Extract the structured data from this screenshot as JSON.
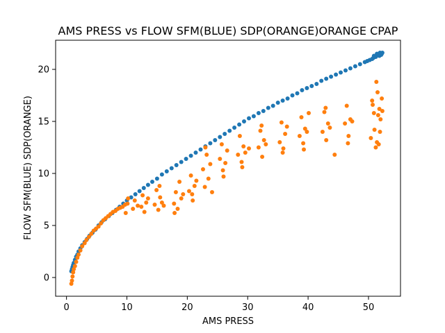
{
  "chart_data": {
    "type": "scatter",
    "title": "AMS PRESS vs FLOW SFM(BLUE) SDP(ORANGE)ORANGE CPAP",
    "xlabel": "AMS PRESS",
    "ylabel": "FLOW SFM(BLUE) SDP(ORANGE)",
    "xlim": [
      -1.8,
      55.3
    ],
    "ylim": [
      -1.8,
      22.8
    ],
    "x_ticks": [
      0,
      10,
      20,
      30,
      40,
      50
    ],
    "y_ticks": [
      0,
      5,
      10,
      15,
      20
    ],
    "grid": false,
    "legend": "none",
    "series": [
      {
        "color": "#1f77b4",
        "points": [
          [
            0.8,
            0.6
          ],
          [
            0.9,
            0.8
          ],
          [
            1.0,
            1.0
          ],
          [
            1.1,
            1.2
          ],
          [
            1.2,
            1.4
          ],
          [
            1.4,
            1.7
          ],
          [
            1.6,
            2.0
          ],
          [
            1.8,
            2.2
          ],
          [
            2.0,
            2.5
          ],
          [
            2.3,
            2.8
          ],
          [
            2.6,
            3.1
          ],
          [
            3.0,
            3.4
          ],
          [
            3.4,
            3.7
          ],
          [
            3.8,
            4.0
          ],
          [
            4.3,
            4.3
          ],
          [
            4.8,
            4.6
          ],
          [
            5.3,
            5.0
          ],
          [
            5.8,
            5.3
          ],
          [
            6.4,
            5.6
          ],
          [
            7.0,
            5.9
          ],
          [
            7.6,
            6.2
          ],
          [
            8.2,
            6.5
          ],
          [
            8.8,
            6.8
          ],
          [
            9.4,
            7.1
          ],
          [
            10.0,
            7.4
          ],
          [
            10.7,
            7.7
          ],
          [
            11.4,
            8.0
          ],
          [
            12.1,
            8.3
          ],
          [
            12.8,
            8.6
          ],
          [
            13.5,
            8.9
          ],
          [
            14.2,
            9.2
          ],
          [
            15.0,
            9.5
          ],
          [
            15.8,
            9.9
          ],
          [
            16.6,
            10.2
          ],
          [
            17.4,
            10.5
          ],
          [
            18.2,
            10.8
          ],
          [
            19.0,
            11.1
          ],
          [
            19.8,
            11.4
          ],
          [
            20.6,
            11.7
          ],
          [
            21.4,
            12.0
          ],
          [
            22.2,
            12.3
          ],
          [
            23.0,
            12.6
          ],
          [
            23.8,
            12.9
          ],
          [
            24.6,
            13.2
          ],
          [
            25.4,
            13.5
          ],
          [
            26.2,
            13.8
          ],
          [
            27.0,
            14.1
          ],
          [
            27.8,
            14.4
          ],
          [
            28.6,
            14.7
          ],
          [
            29.4,
            15.0
          ],
          [
            30.2,
            15.3
          ],
          [
            31.0,
            15.5
          ],
          [
            31.8,
            15.8
          ],
          [
            32.6,
            16.0
          ],
          [
            33.4,
            16.3
          ],
          [
            34.2,
            16.5
          ],
          [
            35.0,
            16.8
          ],
          [
            35.8,
            17.0
          ],
          [
            36.6,
            17.2
          ],
          [
            37.4,
            17.5
          ],
          [
            38.2,
            17.7
          ],
          [
            39.0,
            18.0
          ],
          [
            39.8,
            18.2
          ],
          [
            40.6,
            18.4
          ],
          [
            41.4,
            18.6
          ],
          [
            42.2,
            18.9
          ],
          [
            43.0,
            19.1
          ],
          [
            43.8,
            19.3
          ],
          [
            44.6,
            19.5
          ],
          [
            45.4,
            19.7
          ],
          [
            46.2,
            19.9
          ],
          [
            47.0,
            20.1
          ],
          [
            47.8,
            20.3
          ],
          [
            48.6,
            20.5
          ],
          [
            49.4,
            20.7
          ],
          [
            50.2,
            20.9
          ],
          [
            50.8,
            21.1
          ],
          [
            51.2,
            21.2
          ],
          [
            51.6,
            21.4
          ],
          [
            52.0,
            21.5
          ],
          [
            52.3,
            21.6
          ],
          [
            51.8,
            21.3
          ],
          [
            51.4,
            21.5
          ],
          [
            52.1,
            21.4
          ],
          [
            50.6,
            21.0
          ],
          [
            49.8,
            20.8
          ],
          [
            51.0,
            21.2
          ],
          [
            51.9,
            21.6
          ],
          [
            50.9,
            21.3
          ],
          [
            52.2,
            21.5
          ]
        ]
      },
      {
        "color": "#ff7f0e",
        "points": [
          [
            0.8,
            -0.6
          ],
          [
            0.9,
            -0.3
          ],
          [
            1.0,
            0.1
          ],
          [
            1.1,
            0.5
          ],
          [
            1.2,
            0.8
          ],
          [
            1.4,
            1.1
          ],
          [
            1.6,
            1.5
          ],
          [
            1.8,
            1.9
          ],
          [
            2.0,
            2.2
          ],
          [
            2.3,
            2.6
          ],
          [
            2.6,
            3.0
          ],
          [
            3.0,
            3.3
          ],
          [
            3.3,
            3.6
          ],
          [
            3.7,
            3.9
          ],
          [
            4.1,
            4.2
          ],
          [
            4.5,
            4.5
          ],
          [
            4.9,
            4.7
          ],
          [
            5.3,
            4.9
          ],
          [
            5.7,
            5.2
          ],
          [
            6.1,
            5.5
          ],
          [
            6.5,
            5.7
          ],
          [
            6.9,
            5.9
          ],
          [
            7.3,
            6.1
          ],
          [
            7.7,
            6.3
          ],
          [
            8.1,
            6.4
          ],
          [
            8.5,
            6.6
          ],
          [
            8.9,
            6.7
          ],
          [
            9.3,
            6.8
          ],
          [
            9.7,
            7.0
          ],
          [
            10.1,
            7.1
          ],
          [
            9.8,
            6.2
          ],
          [
            10.2,
            7.6
          ],
          [
            11.0,
            6.6
          ],
          [
            11.3,
            7.4
          ],
          [
            11.8,
            6.9
          ],
          [
            12.4,
            6.8
          ],
          [
            12.6,
            7.9
          ],
          [
            12.9,
            6.3
          ],
          [
            13.2,
            7.2
          ],
          [
            13.5,
            7.6
          ],
          [
            14.6,
            7.0
          ],
          [
            14.9,
            8.4
          ],
          [
            15.2,
            6.5
          ],
          [
            15.5,
            7.7
          ],
          [
            15.8,
            7.2
          ],
          [
            16.1,
            6.9
          ],
          [
            15.4,
            8.8
          ],
          [
            17.8,
            7.1
          ],
          [
            18.1,
            8.2
          ],
          [
            18.4,
            6.6
          ],
          [
            18.7,
            9.2
          ],
          [
            19.0,
            7.6
          ],
          [
            19.3,
            8.0
          ],
          [
            17.9,
            6.2
          ],
          [
            20.3,
            8.3
          ],
          [
            20.6,
            9.8
          ],
          [
            20.9,
            7.4
          ],
          [
            21.2,
            8.8
          ],
          [
            21.5,
            9.3
          ],
          [
            20.8,
            8.0
          ],
          [
            22.6,
            10.4
          ],
          [
            22.9,
            8.7
          ],
          [
            23.2,
            11.8
          ],
          [
            23.5,
            9.5
          ],
          [
            23.8,
            10.9
          ],
          [
            24.1,
            8.2
          ],
          [
            23.0,
            12.5
          ],
          [
            25.4,
            11.4
          ],
          [
            25.7,
            12.8
          ],
          [
            26.0,
            9.7
          ],
          [
            26.3,
            11.0
          ],
          [
            26.6,
            12.2
          ],
          [
            25.9,
            10.3
          ],
          [
            28.4,
            11.8
          ],
          [
            28.7,
            13.6
          ],
          [
            29.0,
            11.1
          ],
          [
            29.3,
            12.6
          ],
          [
            29.6,
            12.0
          ],
          [
            29.1,
            10.6
          ],
          [
            30.2,
            12.4
          ],
          [
            31.8,
            12.5
          ],
          [
            32.1,
            14.1
          ],
          [
            32.4,
            11.6
          ],
          [
            32.7,
            13.2
          ],
          [
            33.0,
            12.8
          ],
          [
            32.3,
            14.6
          ],
          [
            35.3,
            13.0
          ],
          [
            35.6,
            14.9
          ],
          [
            35.9,
            12.4
          ],
          [
            36.2,
            13.8
          ],
          [
            36.5,
            14.5
          ],
          [
            35.8,
            12.0
          ],
          [
            38.6,
            13.6
          ],
          [
            38.9,
            15.4
          ],
          [
            39.2,
            12.9
          ],
          [
            39.5,
            14.3
          ],
          [
            39.8,
            14.0
          ],
          [
            40.1,
            15.8
          ],
          [
            39.3,
            12.3
          ],
          [
            42.4,
            14.0
          ],
          [
            42.7,
            15.9
          ],
          [
            43.0,
            13.2
          ],
          [
            43.3,
            14.8
          ],
          [
            43.6,
            14.4
          ],
          [
            42.9,
            16.3
          ],
          [
            44.4,
            11.8
          ],
          [
            46.1,
            14.8
          ],
          [
            46.4,
            16.5
          ],
          [
            46.7,
            13.6
          ],
          [
            47.0,
            15.2
          ],
          [
            47.3,
            15.0
          ],
          [
            46.6,
            12.9
          ],
          [
            50.4,
            13.4
          ],
          [
            50.7,
            16.6
          ],
          [
            51.0,
            14.2
          ],
          [
            51.3,
            18.8
          ],
          [
            51.6,
            15.6
          ],
          [
            51.9,
            14.0
          ],
          [
            52.2,
            17.2
          ],
          [
            51.2,
            12.5
          ],
          [
            51.5,
            17.8
          ],
          [
            51.8,
            16.2
          ],
          [
            50.9,
            15.8
          ],
          [
            52.0,
            15.2
          ],
          [
            51.4,
            13.0
          ],
          [
            50.6,
            17.0
          ],
          [
            51.7,
            12.8
          ],
          [
            52.3,
            16.0
          ]
        ]
      }
    ]
  }
}
